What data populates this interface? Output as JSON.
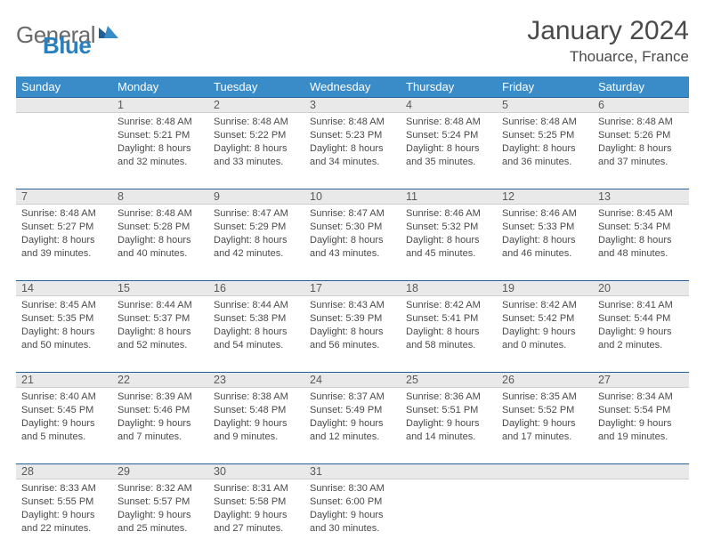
{
  "logo": {
    "general": "General",
    "blue": "Blue"
  },
  "title": "January 2024",
  "location": "Thouarce, France",
  "colors": {
    "header_bg": "#3a8cc9",
    "header_text": "#ffffff",
    "daynum_bg": "#e9e9e9",
    "row_border": "#22629a",
    "text": "#4a4a4a",
    "logo_blue": "#2a7fbf",
    "logo_gray": "#6a6a6a"
  },
  "weekdays": [
    "Sunday",
    "Monday",
    "Tuesday",
    "Wednesday",
    "Thursday",
    "Friday",
    "Saturday"
  ],
  "weeks": [
    [
      {
        "num": "",
        "lines": []
      },
      {
        "num": "1",
        "lines": [
          "Sunrise: 8:48 AM",
          "Sunset: 5:21 PM",
          "Daylight: 8 hours",
          "and 32 minutes."
        ]
      },
      {
        "num": "2",
        "lines": [
          "Sunrise: 8:48 AM",
          "Sunset: 5:22 PM",
          "Daylight: 8 hours",
          "and 33 minutes."
        ]
      },
      {
        "num": "3",
        "lines": [
          "Sunrise: 8:48 AM",
          "Sunset: 5:23 PM",
          "Daylight: 8 hours",
          "and 34 minutes."
        ]
      },
      {
        "num": "4",
        "lines": [
          "Sunrise: 8:48 AM",
          "Sunset: 5:24 PM",
          "Daylight: 8 hours",
          "and 35 minutes."
        ]
      },
      {
        "num": "5",
        "lines": [
          "Sunrise: 8:48 AM",
          "Sunset: 5:25 PM",
          "Daylight: 8 hours",
          "and 36 minutes."
        ]
      },
      {
        "num": "6",
        "lines": [
          "Sunrise: 8:48 AM",
          "Sunset: 5:26 PM",
          "Daylight: 8 hours",
          "and 37 minutes."
        ]
      }
    ],
    [
      {
        "num": "7",
        "lines": [
          "Sunrise: 8:48 AM",
          "Sunset: 5:27 PM",
          "Daylight: 8 hours",
          "and 39 minutes."
        ]
      },
      {
        "num": "8",
        "lines": [
          "Sunrise: 8:48 AM",
          "Sunset: 5:28 PM",
          "Daylight: 8 hours",
          "and 40 minutes."
        ]
      },
      {
        "num": "9",
        "lines": [
          "Sunrise: 8:47 AM",
          "Sunset: 5:29 PM",
          "Daylight: 8 hours",
          "and 42 minutes."
        ]
      },
      {
        "num": "10",
        "lines": [
          "Sunrise: 8:47 AM",
          "Sunset: 5:30 PM",
          "Daylight: 8 hours",
          "and 43 minutes."
        ]
      },
      {
        "num": "11",
        "lines": [
          "Sunrise: 8:46 AM",
          "Sunset: 5:32 PM",
          "Daylight: 8 hours",
          "and 45 minutes."
        ]
      },
      {
        "num": "12",
        "lines": [
          "Sunrise: 8:46 AM",
          "Sunset: 5:33 PM",
          "Daylight: 8 hours",
          "and 46 minutes."
        ]
      },
      {
        "num": "13",
        "lines": [
          "Sunrise: 8:45 AM",
          "Sunset: 5:34 PM",
          "Daylight: 8 hours",
          "and 48 minutes."
        ]
      }
    ],
    [
      {
        "num": "14",
        "lines": [
          "Sunrise: 8:45 AM",
          "Sunset: 5:35 PM",
          "Daylight: 8 hours",
          "and 50 minutes."
        ]
      },
      {
        "num": "15",
        "lines": [
          "Sunrise: 8:44 AM",
          "Sunset: 5:37 PM",
          "Daylight: 8 hours",
          "and 52 minutes."
        ]
      },
      {
        "num": "16",
        "lines": [
          "Sunrise: 8:44 AM",
          "Sunset: 5:38 PM",
          "Daylight: 8 hours",
          "and 54 minutes."
        ]
      },
      {
        "num": "17",
        "lines": [
          "Sunrise: 8:43 AM",
          "Sunset: 5:39 PM",
          "Daylight: 8 hours",
          "and 56 minutes."
        ]
      },
      {
        "num": "18",
        "lines": [
          "Sunrise: 8:42 AM",
          "Sunset: 5:41 PM",
          "Daylight: 8 hours",
          "and 58 minutes."
        ]
      },
      {
        "num": "19",
        "lines": [
          "Sunrise: 8:42 AM",
          "Sunset: 5:42 PM",
          "Daylight: 9 hours",
          "and 0 minutes."
        ]
      },
      {
        "num": "20",
        "lines": [
          "Sunrise: 8:41 AM",
          "Sunset: 5:44 PM",
          "Daylight: 9 hours",
          "and 2 minutes."
        ]
      }
    ],
    [
      {
        "num": "21",
        "lines": [
          "Sunrise: 8:40 AM",
          "Sunset: 5:45 PM",
          "Daylight: 9 hours",
          "and 5 minutes."
        ]
      },
      {
        "num": "22",
        "lines": [
          "Sunrise: 8:39 AM",
          "Sunset: 5:46 PM",
          "Daylight: 9 hours",
          "and 7 minutes."
        ]
      },
      {
        "num": "23",
        "lines": [
          "Sunrise: 8:38 AM",
          "Sunset: 5:48 PM",
          "Daylight: 9 hours",
          "and 9 minutes."
        ]
      },
      {
        "num": "24",
        "lines": [
          "Sunrise: 8:37 AM",
          "Sunset: 5:49 PM",
          "Daylight: 9 hours",
          "and 12 minutes."
        ]
      },
      {
        "num": "25",
        "lines": [
          "Sunrise: 8:36 AM",
          "Sunset: 5:51 PM",
          "Daylight: 9 hours",
          "and 14 minutes."
        ]
      },
      {
        "num": "26",
        "lines": [
          "Sunrise: 8:35 AM",
          "Sunset: 5:52 PM",
          "Daylight: 9 hours",
          "and 17 minutes."
        ]
      },
      {
        "num": "27",
        "lines": [
          "Sunrise: 8:34 AM",
          "Sunset: 5:54 PM",
          "Daylight: 9 hours",
          "and 19 minutes."
        ]
      }
    ],
    [
      {
        "num": "28",
        "lines": [
          "Sunrise: 8:33 AM",
          "Sunset: 5:55 PM",
          "Daylight: 9 hours",
          "and 22 minutes."
        ]
      },
      {
        "num": "29",
        "lines": [
          "Sunrise: 8:32 AM",
          "Sunset: 5:57 PM",
          "Daylight: 9 hours",
          "and 25 minutes."
        ]
      },
      {
        "num": "30",
        "lines": [
          "Sunrise: 8:31 AM",
          "Sunset: 5:58 PM",
          "Daylight: 9 hours",
          "and 27 minutes."
        ]
      },
      {
        "num": "31",
        "lines": [
          "Sunrise: 8:30 AM",
          "Sunset: 6:00 PM",
          "Daylight: 9 hours",
          "and 30 minutes."
        ]
      },
      {
        "num": "",
        "lines": []
      },
      {
        "num": "",
        "lines": []
      },
      {
        "num": "",
        "lines": []
      }
    ]
  ]
}
